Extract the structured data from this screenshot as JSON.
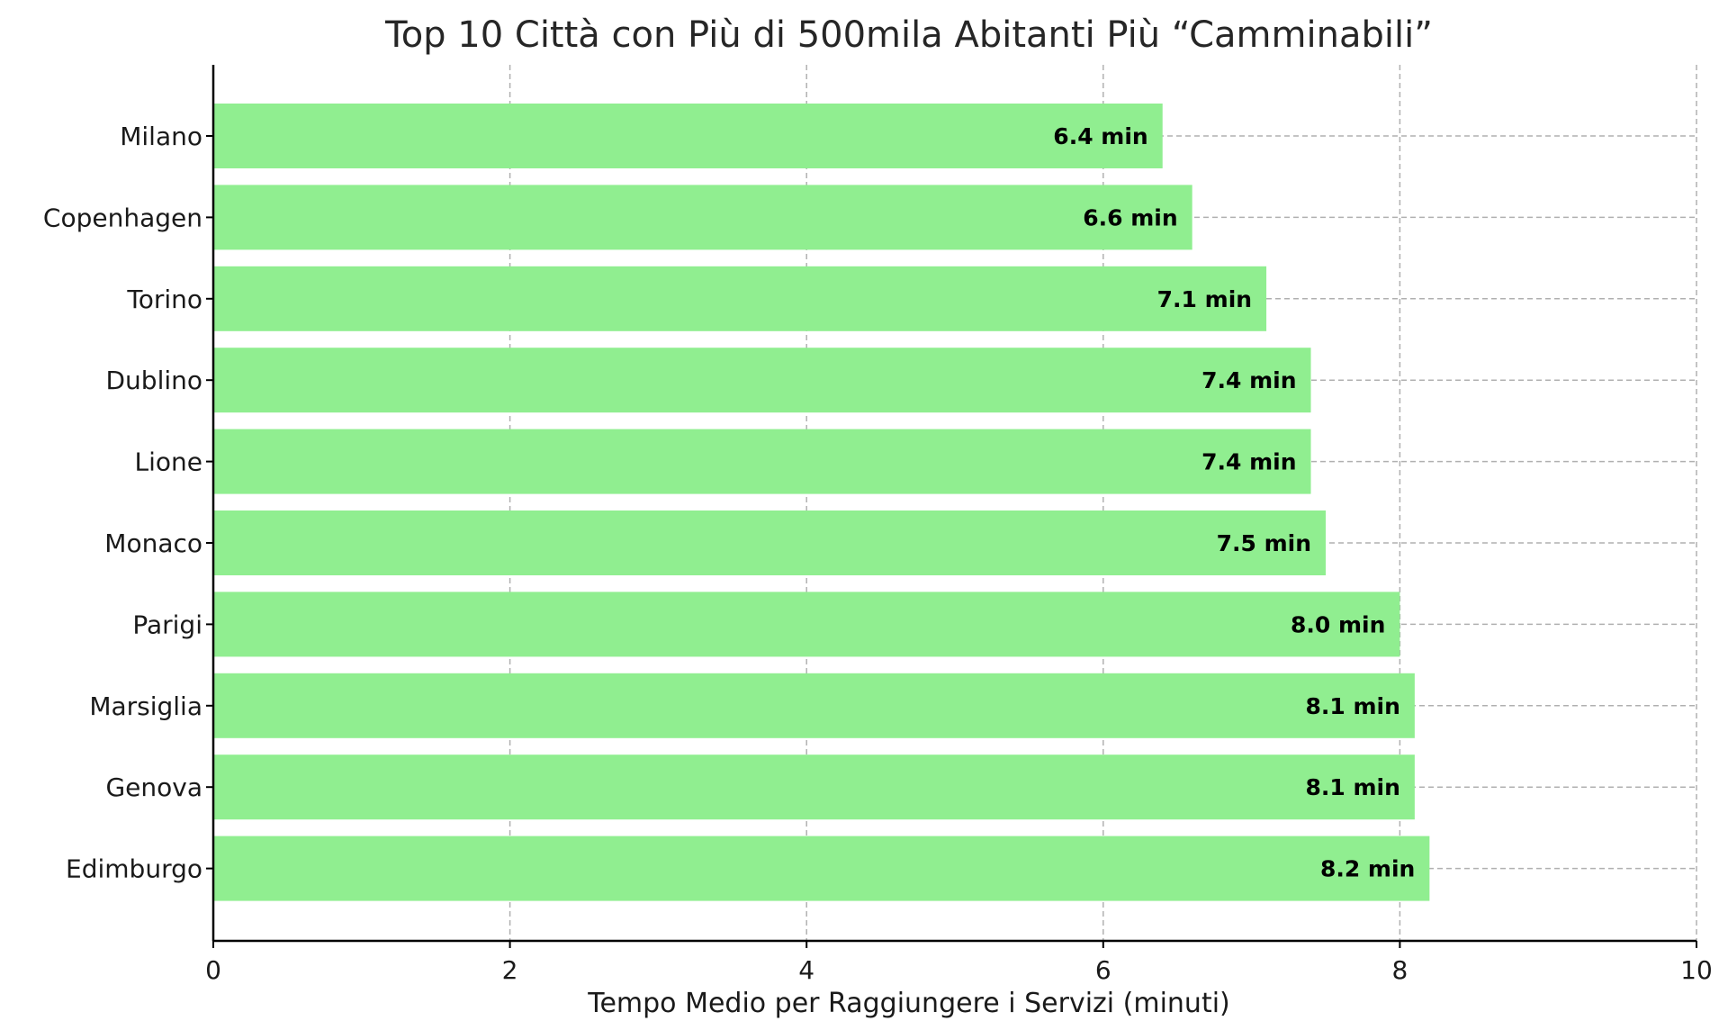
{
  "chart_data": {
    "type": "bar",
    "orientation": "horizontal",
    "title": "Top 10 Città con Più di 500mila Abitanti Più “Camminabili”",
    "xlabel": "Tempo Medio per Raggiungere i Servizi (minuti)",
    "ylabel": "",
    "xlim": [
      0,
      10
    ],
    "xticks": [
      "0",
      "2",
      "4",
      "6",
      "8",
      "10"
    ],
    "grid": true,
    "categories": [
      "Milano",
      "Copenhagen",
      "Torino",
      "Dublino",
      "Lione",
      "Monaco",
      "Parigi",
      "Marsiglia",
      "Genova",
      "Edimburgo"
    ],
    "values": [
      6.4,
      6.6,
      7.1,
      7.4,
      7.4,
      7.5,
      8.0,
      8.1,
      8.1,
      8.2
    ],
    "data_labels": [
      "6.4 min",
      "6.6 min",
      "7.1 min",
      "7.4 min",
      "7.4 min",
      "7.5 min",
      "8.0 min",
      "8.1 min",
      "8.1 min",
      "8.2 min"
    ],
    "bar_color": "#90ee90"
  }
}
